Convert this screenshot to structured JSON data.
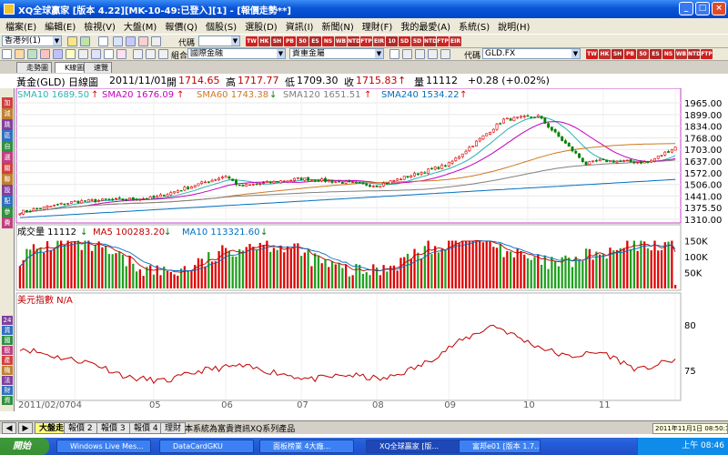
{
  "window": {
    "title": "XQ全球贏家 [版本 4.22][MK-10-49:已登入][1] - [報價走勢**]"
  },
  "menu": [
    "檔案(E)",
    "編輯(E)",
    "檢視(V)",
    "大盤(M)",
    "報價(Q)",
    "個股(S)",
    "選股(D)",
    "資訊(I)",
    "新聞(N)",
    "理財(F)",
    "我的最愛(A)",
    "系統(S)",
    "說明(H)"
  ],
  "toolbar": {
    "group_select": "香港列(1)",
    "code_label": "代碼",
    "market_label": "組合",
    "market_select": "國際金融",
    "commodity_select": "貴重金屬",
    "symbol_label": "代碼",
    "symbol_value": "GLD.FX",
    "red_icons": [
      "TW",
      "HK",
      "SH",
      "PB",
      "50",
      "ES",
      "NS",
      "WB",
      "NTD",
      "FTP",
      "EIR",
      "10",
      "SD",
      "5D",
      "NTD",
      "FTP",
      "EIR"
    ]
  },
  "tabs": [
    "走勢圖",
    "K線圖",
    "速覽"
  ],
  "quote": {
    "name": "黃金(GLD)",
    "period": "日線圖",
    "date": "2011/11/01",
    "open_label": "開",
    "open": "1714.65",
    "high_label": "高",
    "high": "1717.77",
    "low_label": "低",
    "low": "1709.30",
    "close_label": "收",
    "close": "1715.83",
    "vol_label": "量",
    "vol": "11112",
    "change": "+0.28 (+0.02%)"
  },
  "sma": {
    "sma10": "SMA10 1689.50",
    "sma20": "SMA20 1676.09",
    "sma60": "SMA60 1743.38",
    "sma120": "SMA120 1651.51",
    "sma240": "SMA240 1534.22"
  },
  "volume_legend": {
    "vol": "成交量 11112",
    "ma5": "MA5 100283.20",
    "ma10": "MA10 113321.60"
  },
  "usd_legend": "美元指數 N/A",
  "left_buttons": [
    "加",
    "減",
    "跳",
    "區",
    "自",
    "選",
    "關",
    "聯",
    "設",
    "配",
    "參",
    "費"
  ],
  "right_buttons": [
    "24",
    "貨",
    "國",
    "股",
    "產",
    "機",
    "法",
    "財",
    "資"
  ],
  "colors": {
    "up": "#e00000",
    "down": "#008000",
    "sma10": "#2cb3b3",
    "sma20": "#c000c0",
    "sma60": "#d07820",
    "sma120": "#808080",
    "sma240": "#0070c0",
    "usd": "#c00000"
  },
  "chart_data": [
    {
      "type": "candlestick",
      "title": "黃金(GLD) 日線圖",
      "x_range": [
        "2011/02/07",
        "2011/11/01"
      ],
      "x_tick_labels": [
        "2011/02/07",
        "04",
        "05",
        "06",
        "07",
        "08",
        "09",
        "10",
        "11"
      ],
      "y_ticks": [
        "1965.00",
        "1899.00",
        "1834.00",
        "1768.00",
        "1703.00",
        "1637.00",
        "1572.00",
        "1506.00",
        "1441.00",
        "1375.50",
        "1310.00"
      ],
      "ylim": [
        1300,
        1975
      ],
      "anchors": {
        "dates": [
          "2011/02/07",
          "2011/03/01",
          "2011/04/01",
          "2011/05/02",
          "2011/05/06",
          "2011/06/01",
          "2011/07/01",
          "2011/08/01",
          "2011/08/23",
          "2011/09/06",
          "2011/09/26",
          "2011/10/01",
          "2011/10/20",
          "2011/11/01"
        ],
        "close": [
          1350,
          1410,
          1430,
          1555,
          1495,
          1540,
          1500,
          1620,
          1870,
          1890,
          1620,
          1640,
          1630,
          1715.83
        ]
      },
      "series": [
        {
          "name": "SMA10",
          "last": 1689.5
        },
        {
          "name": "SMA20",
          "last": 1676.09
        },
        {
          "name": "SMA60",
          "last": 1743.38
        },
        {
          "name": "SMA120",
          "last": 1651.51
        },
        {
          "name": "SMA240",
          "last": 1534.22
        }
      ]
    },
    {
      "type": "bar",
      "title": "成交量",
      "y_ticks": [
        "150K",
        "100K",
        "50K"
      ],
      "ylim": [
        0,
        160000
      ],
      "last": 11112
    },
    {
      "type": "line",
      "title": "美元指數",
      "y_ticks": [
        "80",
        "75"
      ],
      "ylim": [
        72,
        82
      ],
      "anchors_value": [
        77.5,
        76.5,
        75.8,
        74.2,
        73.8,
        75.0,
        75.5,
        74.8,
        74.0,
        74.5,
        74.0,
        75.5,
        78.0,
        80.0,
        78.0,
        76.5,
        77.0,
        75.0,
        76.2
      ]
    }
  ],
  "bottom_tabs": [
    "大盤走勢",
    "報價 2",
    "報價 3",
    "報價 4",
    "理財"
  ],
  "bottom_status": "本系統為富貴資訊XQ系列產品",
  "datetime_box": "2011年11月1日 08:50:14",
  "taskbar": {
    "start": "開始",
    "tasks": [
      "Windows Live Mes...",
      "DataCardGKU",
      "面板榜業 4大廠...",
      "XQ全球贏家 [版...",
      "富邦e01 [版本 1.7..."
    ],
    "clock": "上午 08:46"
  }
}
